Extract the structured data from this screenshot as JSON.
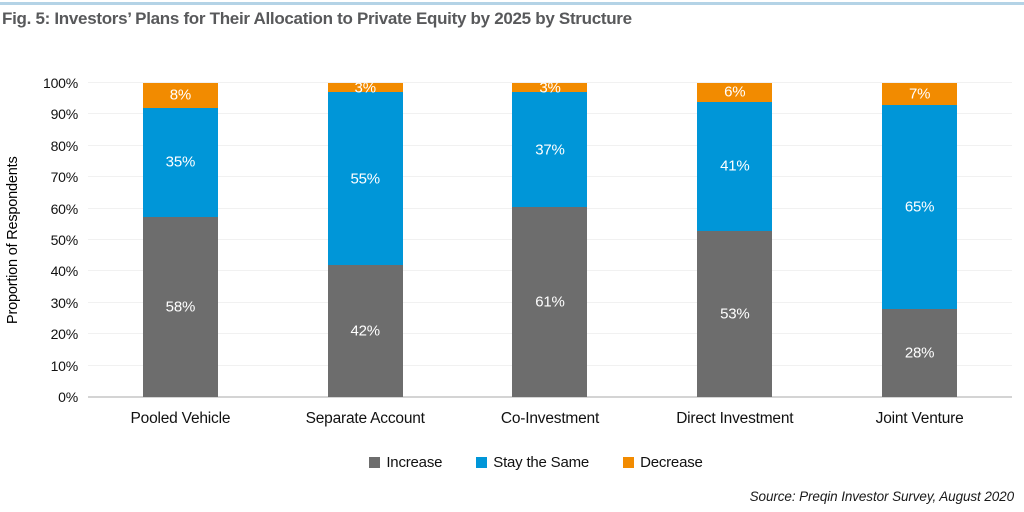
{
  "title": "Fig. 5: Investors’ Plans for Their Allocation to Private Equity by 2025 by Structure",
  "source": "Source: Preqin Investor Survey, August 2020",
  "colors": {
    "increase": "#6d6d6d",
    "stay_the_same": "#0096d8",
    "decrease": "#f28b00",
    "top_rule": "#b4d3e6",
    "title_text": "#58595b",
    "grid": "#f1f1f1",
    "axis_line": "#d4d4d4"
  },
  "chart_data": {
    "type": "bar",
    "stacked": true,
    "title": "Fig. 5: Investors’ Plans for Their Allocation to Private Equity by 2025 by Structure",
    "categories": [
      "Pooled Vehicle",
      "Separate Account",
      "Co-Investment",
      "Direct Investment",
      "Joint Venture"
    ],
    "series": [
      {
        "name": "Increase",
        "color": "#6d6d6d",
        "values": [
          58,
          42,
          61,
          53,
          28
        ]
      },
      {
        "name": "Stay the Same",
        "color": "#0096d8",
        "values": [
          35,
          55,
          37,
          41,
          65
        ]
      },
      {
        "name": "Decrease",
        "color": "#f28b00",
        "values": [
          8,
          3,
          3,
          6,
          7
        ]
      }
    ],
    "data_labels": [
      "58%",
      "42%",
      "61%",
      "53%",
      "28%",
      "35%",
      "55%",
      "37%",
      "41%",
      "65%",
      "8%",
      "3%",
      "3%",
      "6%",
      "7%"
    ],
    "xlabel": "",
    "ylabel": "Proportion of Respondents",
    "ylim": [
      0,
      100
    ],
    "ytick_labels": [
      "0%",
      "10%",
      "20%",
      "30%",
      "40%",
      "50%",
      "60%",
      "70%",
      "80%",
      "90%",
      "100%"
    ],
    "grid": true,
    "legend_position": "bottom"
  }
}
